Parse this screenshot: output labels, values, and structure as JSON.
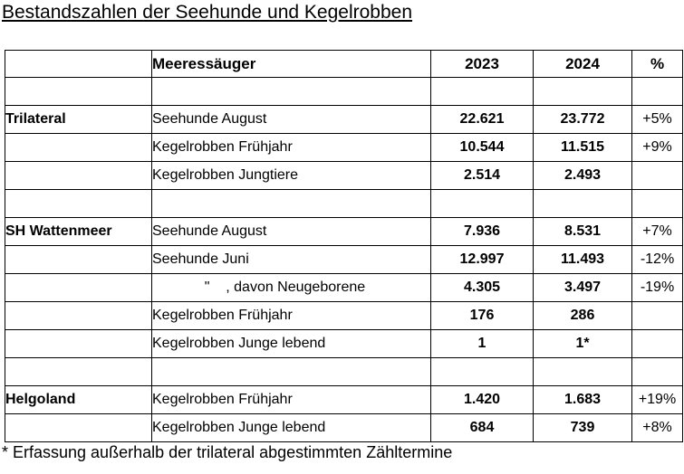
{
  "title": "Bestandszahlen der Seehunde und Kegelrobben",
  "table": {
    "headers": {
      "region": "",
      "species": "Meeressäuger",
      "year1": "2023",
      "year2": "2024",
      "percent": "%"
    },
    "rows": [
      {
        "region": "",
        "species": "",
        "v2023": "",
        "v2024": "",
        "percent": ""
      },
      {
        "region": "Trilateral",
        "species": "Seehunde August",
        "v2023": "22.621",
        "v2024": "23.772",
        "percent": "+5%"
      },
      {
        "region": "",
        "species": "Kegelrobben Frühjahr",
        "v2023": "10.544",
        "v2024": "11.515",
        "percent": "+9%"
      },
      {
        "region": "",
        "species": "Kegelrobben Jungtiere",
        "v2023": "2.514",
        "v2024": "2.493",
        "percent": ""
      },
      {
        "region": "",
        "species": "",
        "v2023": "",
        "v2024": "",
        "percent": ""
      },
      {
        "region": "SH Wattenmeer",
        "species": "Seehunde August",
        "v2023": "7.936",
        "v2024": "8.531",
        "percent": "+7%"
      },
      {
        "region": "",
        "species": "Seehunde Juni",
        "v2023": "12.997",
        "v2024": "11.493",
        "percent": "-12%"
      },
      {
        "region": "",
        "species": "             \"    , davon Neugeborene",
        "v2023": "4.305",
        "v2024": "3.497",
        "percent": "-19%"
      },
      {
        "region": "",
        "species": "Kegelrobben Frühjahr",
        "v2023": "176",
        "v2024": "286",
        "percent": ""
      },
      {
        "region": "",
        "species": "Kegelrobben Junge lebend",
        "v2023": "1",
        "v2024": "1*",
        "percent": ""
      },
      {
        "region": "",
        "species": "",
        "v2023": "",
        "v2024": "",
        "percent": ""
      },
      {
        "region": "Helgoland",
        "species": "Kegelrobben Frühjahr",
        "v2023": "1.420",
        "v2024": "1.683",
        "percent": "+19%"
      },
      {
        "region": "",
        "species": "Kegelrobben Junge lebend",
        "v2023": "684",
        "v2024": "739",
        "percent": "+8%"
      }
    ]
  },
  "footnote": "* Erfassung außerhalb der trilateral abgestimmten Zähltermine",
  "colors": {
    "text": "#000000",
    "border": "#000000",
    "background": "#ffffff"
  }
}
